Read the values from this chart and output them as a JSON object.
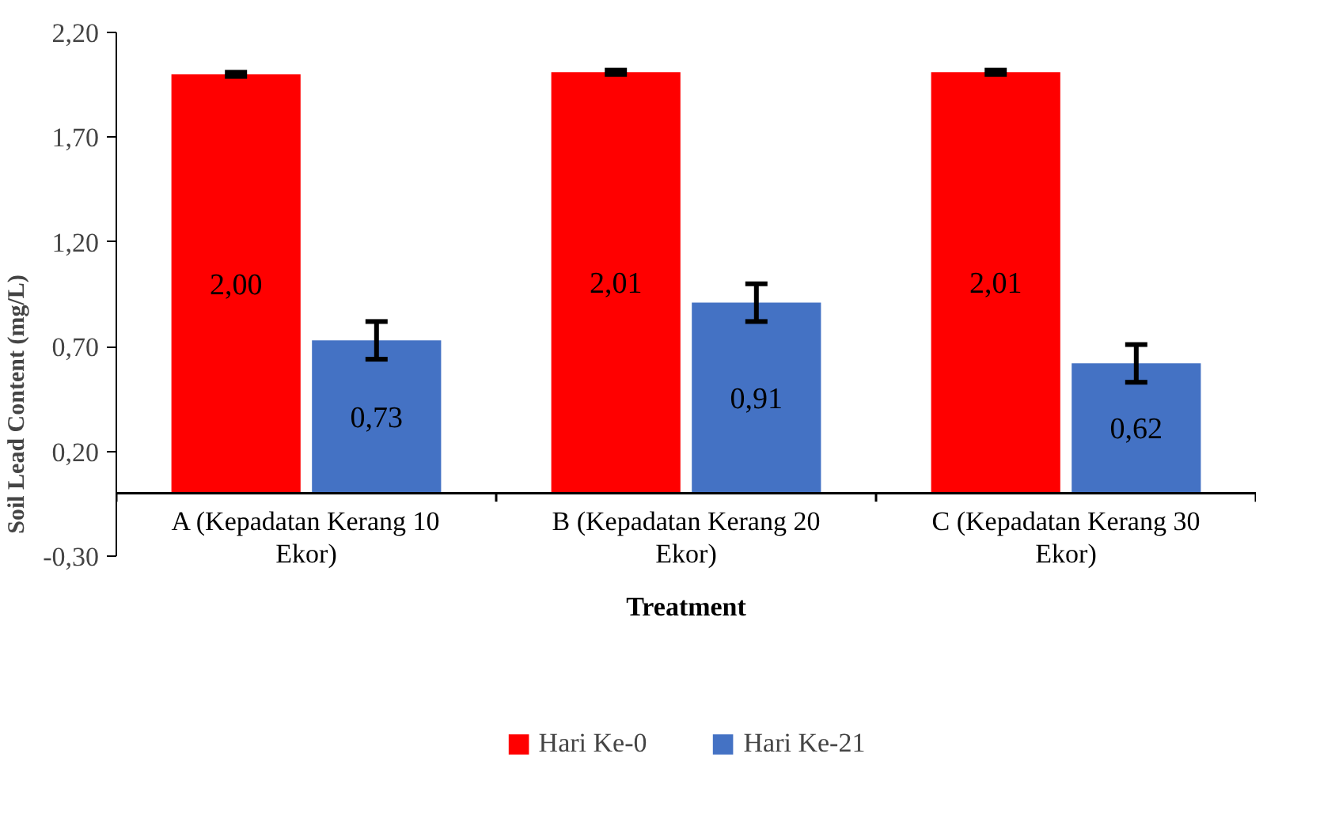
{
  "chart_data": {
    "type": "bar",
    "xlabel": "Treatment",
    "ylabel": "Soil Lead Content (mg/L)",
    "categories": [
      "A (Kepadatan Kerang 10 Ekor)",
      "B (Kepadatan Kerang 20 Ekor)",
      "C (Kepadatan Kerang 30 Ekor)"
    ],
    "series": [
      {
        "name": "Hari Ke-0",
        "color": "#ff0000",
        "values": [
          2.0,
          2.01,
          2.01
        ],
        "errors": [
          0.01,
          0.01,
          0.01
        ],
        "value_labels": [
          "2,00",
          "2,01",
          "2,01"
        ]
      },
      {
        "name": "Hari Ke-21",
        "color": "#4472c4",
        "values": [
          0.73,
          0.91,
          0.62
        ],
        "errors": [
          0.09,
          0.09,
          0.09
        ],
        "value_labels": [
          "0,73",
          "0,91",
          "0,62"
        ]
      }
    ],
    "ylim": [
      -0.3,
      2.2
    ],
    "yticks": [
      {
        "value": -0.3,
        "label": "-0,30"
      },
      {
        "value": 0.2,
        "label": "0,20"
      },
      {
        "value": 0.7,
        "label": "0,70"
      },
      {
        "value": 1.2,
        "label": "1,20"
      },
      {
        "value": 1.7,
        "label": "1,70"
      },
      {
        "value": 2.2,
        "label": "2,20"
      }
    ],
    "grid": false,
    "legend": "bottom"
  }
}
